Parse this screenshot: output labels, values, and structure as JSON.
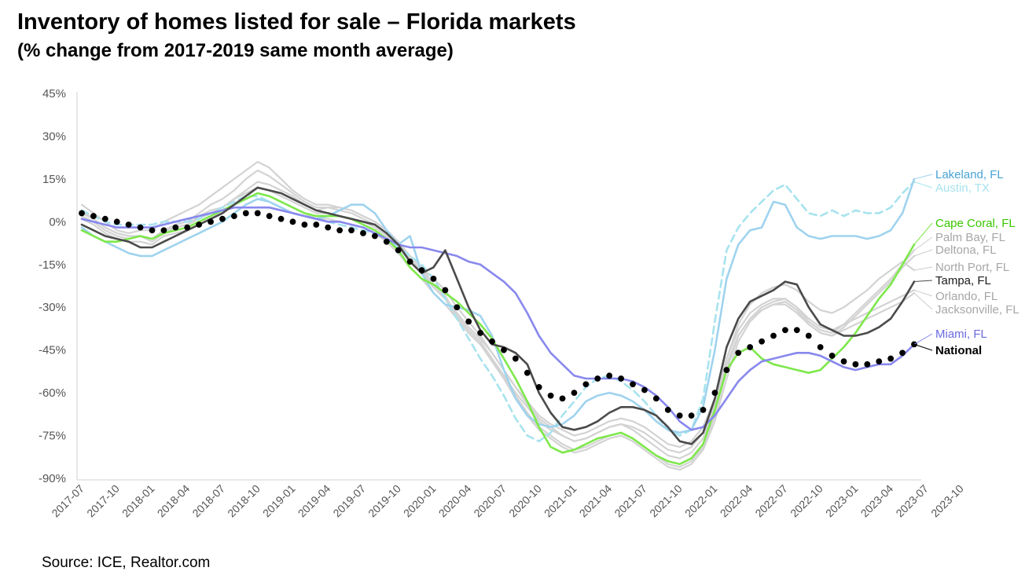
{
  "title": "Inventory of homes listed for sale – Florida markets",
  "subtitle": "(% change from 2017-2019 same month average)",
  "source": "Source: ICE, Realtor.com",
  "chart_data": {
    "type": "line",
    "title": "Inventory of homes listed for sale – Florida markets",
    "subtitle": "(% change from 2017-2019 same month average)",
    "xlabel": "",
    "ylabel": "",
    "ylim": [
      -90,
      45
    ],
    "y_ticks": [
      45,
      30,
      15,
      0,
      -15,
      -30,
      -45,
      -60,
      -75,
      -90
    ],
    "y_tick_labels": [
      "45%",
      "30%",
      "15%",
      "0%",
      "-15%",
      "-30%",
      "-45%",
      "-60%",
      "-75%",
      "-90%"
    ],
    "x_tick_labels": [
      "2017-07",
      "2017-10",
      "2018-01",
      "2018-04",
      "2018-07",
      "2018-10",
      "2019-01",
      "2019-04",
      "2019-07",
      "2019-10",
      "2020-01",
      "2020-04",
      "2020-07",
      "2020-10",
      "2021-01",
      "2021-04",
      "2021-07",
      "2021-10",
      "2022-01",
      "2022-04",
      "2022-07",
      "2022-10",
      "2023-01",
      "2023-04",
      "2023-07",
      "2023-10"
    ],
    "grid": false,
    "legend": "right, labels at line ends",
    "series": [
      {
        "name": "Palm Bay, FL",
        "color": "#d3d3d3",
        "style": "solid",
        "values": [
          4,
          1,
          -2,
          -4,
          -5,
          -5,
          -7,
          -4,
          -2,
          -1,
          2,
          4,
          5,
          8,
          11,
          14,
          13,
          11,
          9,
          6,
          4,
          5,
          5,
          4,
          2,
          0,
          -3,
          -7,
          -12,
          -16,
          -22,
          -26,
          -33,
          -38,
          -42,
          -48,
          -54,
          -61,
          -67,
          -72,
          -75,
          -78,
          -80,
          -79,
          -77,
          -75,
          -74,
          -76,
          -79,
          -82,
          -85,
          -86,
          -84,
          -79,
          -68,
          -52,
          -40,
          -34,
          -30,
          -28,
          -27,
          -30,
          -35,
          -38,
          -39,
          -36,
          -32,
          -28,
          -24,
          -20,
          -15,
          -10
        ]
      },
      {
        "name": "Deltona, FL",
        "color": "#d3d3d3",
        "style": "solid",
        "values": [
          2,
          0,
          -3,
          -5,
          -6,
          -5,
          -6,
          -3,
          -1,
          0,
          3,
          6,
          8,
          11,
          15,
          18,
          16,
          13,
          10,
          7,
          5,
          5,
          4,
          3,
          1,
          -1,
          -4,
          -8,
          -13,
          -17,
          -23,
          -27,
          -34,
          -39,
          -43,
          -49,
          -55,
          -62,
          -68,
          -73,
          -76,
          -79,
          -81,
          -80,
          -78,
          -76,
          -75,
          -77,
          -80,
          -83,
          -86,
          -87,
          -85,
          -80,
          -70,
          -55,
          -42,
          -35,
          -31,
          -29,
          -28,
          -31,
          -36,
          -39,
          -40,
          -37,
          -33,
          -29,
          -25,
          -21,
          -16,
          -12
        ]
      },
      {
        "name": "North Port, FL",
        "color": "#d3d3d3",
        "style": "solid",
        "values": [
          6,
          3,
          0,
          -3,
          -4,
          -3,
          -3,
          0,
          2,
          4,
          6,
          9,
          12,
          15,
          18,
          21,
          19,
          15,
          11,
          8,
          6,
          6,
          5,
          4,
          2,
          0,
          -3,
          -7,
          -12,
          -16,
          -20,
          -24,
          -30,
          -35,
          -40,
          -46,
          -52,
          -58,
          -64,
          -69,
          -72,
          -75,
          -77,
          -76,
          -74,
          -72,
          -71,
          -73,
          -76,
          -79,
          -82,
          -83,
          -81,
          -76,
          -64,
          -48,
          -36,
          -29,
          -25,
          -23,
          -22,
          -24,
          -28,
          -31,
          -32,
          -30,
          -27,
          -24,
          -20,
          -17,
          -14,
          -17
        ]
      },
      {
        "name": "Orlando, FL",
        "color": "#d3d3d3",
        "style": "solid",
        "values": [
          3,
          1,
          -2,
          -4,
          -5,
          -5,
          -6,
          -3,
          -2,
          -1,
          1,
          3,
          5,
          8,
          10,
          12,
          11,
          9,
          7,
          5,
          3,
          3,
          2,
          1,
          0,
          -2,
          -5,
          -9,
          -14,
          -18,
          -23,
          -27,
          -32,
          -37,
          -41,
          -46,
          -52,
          -58,
          -63,
          -68,
          -71,
          -73,
          -75,
          -74,
          -72,
          -70,
          -69,
          -70,
          -72,
          -75,
          -78,
          -79,
          -77,
          -72,
          -62,
          -48,
          -38,
          -32,
          -29,
          -27,
          -27,
          -30,
          -34,
          -37,
          -38,
          -36,
          -34,
          -32,
          -30,
          -28,
          -26,
          -24
        ]
      },
      {
        "name": "Jacksonville, FL",
        "color": "#d3d3d3",
        "style": "solid",
        "values": [
          1,
          -1,
          -4,
          -6,
          -7,
          -7,
          -8,
          -5,
          -4,
          -3,
          -1,
          1,
          3,
          6,
          8,
          10,
          9,
          7,
          5,
          3,
          1,
          1,
          0,
          -1,
          -2,
          -4,
          -7,
          -11,
          -16,
          -20,
          -25,
          -29,
          -34,
          -39,
          -43,
          -48,
          -54,
          -60,
          -65,
          -70,
          -73,
          -75,
          -77,
          -76,
          -74,
          -72,
          -71,
          -72,
          -74,
          -77,
          -80,
          -81,
          -79,
          -74,
          -64,
          -50,
          -40,
          -34,
          -31,
          -29,
          -29,
          -32,
          -36,
          -39,
          -40,
          -38,
          -36,
          -34,
          -32,
          -30,
          -28,
          -25
        ]
      },
      {
        "name": "Austin, TX",
        "color": "#a7e3ee",
        "style": "dashed",
        "values": [
          4,
          2,
          0,
          -1,
          -1,
          -1,
          -1,
          0,
          0,
          0,
          1,
          3,
          5,
          7,
          9,
          9,
          7,
          5,
          3,
          2,
          1,
          0,
          -1,
          -2,
          -3,
          -4,
          -6,
          -9,
          -12,
          -15,
          -20,
          -27,
          -34,
          -41,
          -48,
          -54,
          -61,
          -69,
          -75,
          -77,
          -74,
          -68,
          -63,
          -58,
          -55,
          -54,
          -56,
          -59,
          -63,
          -68,
          -73,
          -75,
          -73,
          -62,
          -35,
          -10,
          -2,
          3,
          7,
          11,
          13,
          8,
          3,
          2,
          4,
          2,
          4,
          3,
          3,
          5,
          10,
          14
        ]
      },
      {
        "name": "Lakeland, FL",
        "color": "#9fd3ee",
        "style": "solid",
        "values": [
          -2,
          -5,
          -7,
          -9,
          -11,
          -12,
          -12,
          -10,
          -8,
          -6,
          -4,
          -2,
          0,
          3,
          6,
          8,
          7,
          5,
          3,
          2,
          1,
          2,
          4,
          6,
          6,
          3,
          -3,
          -8,
          -5,
          -18,
          -25,
          -29,
          -30,
          -31,
          -33,
          -40,
          -52,
          -62,
          -68,
          -71,
          -72,
          -71,
          -68,
          -63,
          -61,
          -60,
          -61,
          -63,
          -66,
          -70,
          -73,
          -74,
          -73,
          -65,
          -45,
          -20,
          -8,
          -3,
          -2,
          7,
          6,
          -2,
          -5,
          -6,
          -5,
          -5,
          -5,
          -6,
          -5,
          -3,
          3,
          15
        ]
      },
      {
        "name": "Cape Coral, FL",
        "color": "#7ee84b",
        "style": "solid",
        "values": [
          -3,
          -5,
          -7,
          -7,
          -6,
          -5,
          -6,
          -4,
          -3,
          -2,
          0,
          2,
          4,
          6,
          8,
          10,
          9,
          7,
          5,
          3,
          2,
          2,
          2,
          1,
          -1,
          -3,
          -6,
          -10,
          -16,
          -20,
          -22,
          -25,
          -28,
          -32,
          -36,
          -41,
          -48,
          -55,
          -63,
          -72,
          -79,
          -81,
          -80,
          -78,
          -76,
          -75,
          -74,
          -76,
          -79,
          -82,
          -84,
          -85,
          -83,
          -78,
          -66,
          -52,
          -46,
          -44,
          -48,
          -50,
          -51,
          -52,
          -53,
          -52,
          -48,
          -44,
          -39,
          -33,
          -27,
          -22,
          -15,
          -8
        ]
      },
      {
        "name": "Miami, FL",
        "color": "#8888ee",
        "style": "solid",
        "values": [
          1,
          0,
          -1,
          -2,
          -2,
          -2,
          -2,
          -1,
          0,
          1,
          2,
          3,
          4,
          5,
          5,
          5,
          5,
          4,
          3,
          2,
          1,
          0,
          0,
          -1,
          -2,
          -4,
          -6,
          -8,
          -9,
          -9,
          -10,
          -11,
          -12,
          -14,
          -15,
          -18,
          -21,
          -25,
          -32,
          -40,
          -46,
          -50,
          -54,
          -55,
          -55,
          -55,
          -55,
          -56,
          -58,
          -61,
          -65,
          -70,
          -73,
          -72,
          -68,
          -62,
          -56,
          -52,
          -49,
          -48,
          -47,
          -46,
          -46,
          -47,
          -49,
          -51,
          -52,
          -51,
          -50,
          -50,
          -47,
          -43
        ]
      },
      {
        "name": "Tampa, FL",
        "color": "#4a4a4a",
        "style": "solid",
        "values": [
          -1,
          -3,
          -5,
          -6,
          -7,
          -9,
          -9,
          -7,
          -5,
          -3,
          -1,
          1,
          3,
          6,
          9,
          12,
          11,
          10,
          8,
          6,
          4,
          3,
          2,
          1,
          0,
          -1,
          -4,
          -8,
          -14,
          -18,
          -16,
          -10,
          -20,
          -30,
          -38,
          -43,
          -44,
          -46,
          -50,
          -60,
          -67,
          -72,
          -73,
          -72,
          -70,
          -67,
          -65,
          -65,
          -66,
          -68,
          -72,
          -77,
          -78,
          -74,
          -62,
          -44,
          -34,
          -28,
          -26,
          -24,
          -21,
          -22,
          -30,
          -36,
          -38,
          -40,
          -40,
          -39,
          -37,
          -34,
          -28,
          -21
        ]
      },
      {
        "name": "National",
        "color": "#000000",
        "style": "dotted",
        "values": [
          3,
          2,
          1,
          0,
          -1,
          -2,
          -3,
          -3,
          -2,
          -2,
          -1,
          0,
          1,
          2,
          3,
          3,
          2,
          1,
          0,
          -1,
          -1,
          -2,
          -3,
          -3,
          -4,
          -5,
          -7,
          -10,
          -14,
          -17,
          -20,
          -24,
          -30,
          -35,
          -39,
          -42,
          -45,
          -48,
          -53,
          -58,
          -61,
          -62,
          -60,
          -57,
          -55,
          -54,
          -55,
          -57,
          -59,
          -62,
          -66,
          -68,
          -68,
          -66,
          -60,
          -52,
          -46,
          -44,
          -42,
          -40,
          -38,
          -38,
          -40,
          -44,
          -47,
          -49,
          -50,
          -50,
          -49,
          -48,
          -46,
          -43
        ]
      }
    ]
  }
}
